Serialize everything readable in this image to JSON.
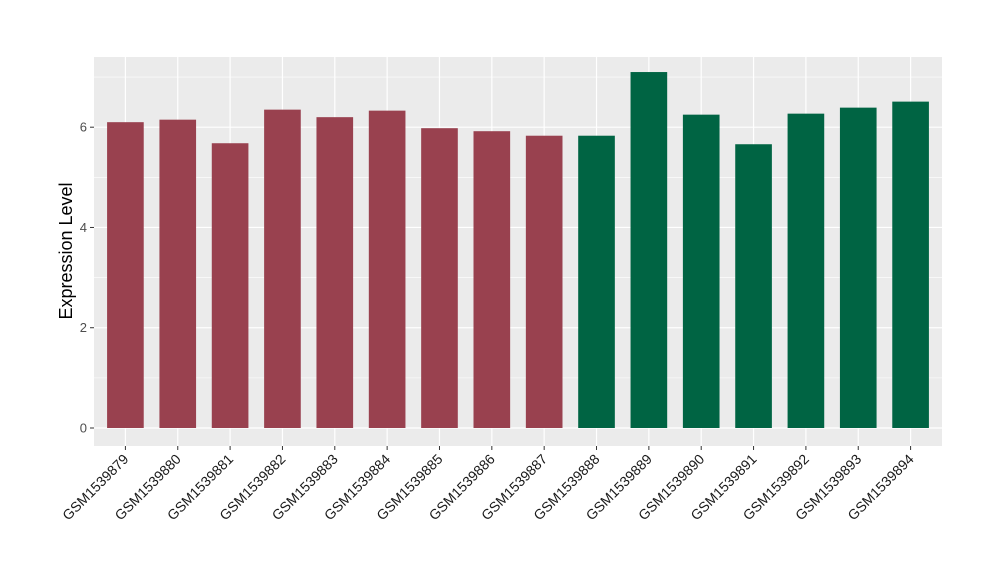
{
  "chart_data": {
    "type": "bar",
    "title": "",
    "xlabel": "",
    "ylabel": "Expression Level",
    "ylim": [
      0,
      7.4
    ],
    "yticks": [
      0,
      2,
      4,
      6
    ],
    "categories": [
      "GSM1539879",
      "GSM1539880",
      "GSM1539881",
      "GSM1539882",
      "GSM1539883",
      "GSM1539884",
      "GSM1539885",
      "GSM1539886",
      "GSM1539887",
      "GSM1539888",
      "GSM1539889",
      "GSM1539890",
      "GSM1539891",
      "GSM1539892",
      "GSM1539893",
      "GSM1539894"
    ],
    "values": [
      6.1,
      6.15,
      5.68,
      6.35,
      6.2,
      6.33,
      5.98,
      5.92,
      5.83,
      5.83,
      7.1,
      6.25,
      5.66,
      6.27,
      6.39,
      6.51
    ],
    "groups": [
      1,
      1,
      1,
      1,
      1,
      1,
      1,
      1,
      1,
      2,
      2,
      2,
      2,
      2,
      2,
      2
    ],
    "group_colors": {
      "1": "#99414f",
      "2": "#006443"
    },
    "panel_background": "#ebebeb",
    "grid_color": "#ffffff",
    "grid": true,
    "legend": "none"
  }
}
